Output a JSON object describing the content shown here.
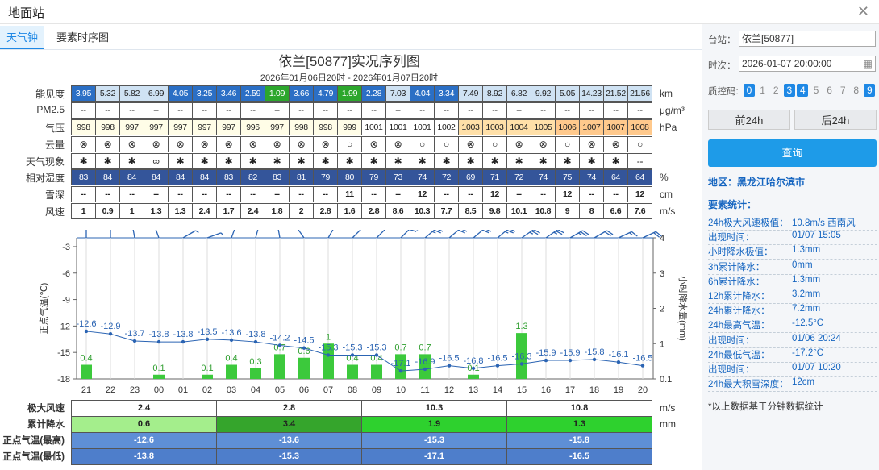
{
  "window": {
    "title": "地面站",
    "close_icon": "close-icon"
  },
  "tabs": [
    {
      "label": "天气钟"
    },
    {
      "label": "要素时序图"
    }
  ],
  "chart": {
    "title": "依兰[50877]实况序列图",
    "subtitle": "2026年01月06日20时 - 2026年01月07日20时"
  },
  "hours": [
    "21",
    "22",
    "23",
    "00",
    "01",
    "02",
    "03",
    "04",
    "05",
    "06",
    "07",
    "08",
    "09",
    "10",
    "11",
    "12",
    "13",
    "14",
    "15",
    "16",
    "17",
    "18",
    "19",
    "20"
  ],
  "rows": [
    {
      "label": "能见度",
      "unit": "km",
      "values": [
        "3.95",
        "5.32",
        "5.82",
        "6.99",
        "4.05",
        "3.25",
        "3.46",
        "2.59",
        "1.09",
        "3.66",
        "4.79",
        "1.99",
        "2.28",
        "7.03",
        "4.04",
        "3.34",
        "7.49",
        "8.92",
        "6.82",
        "9.92",
        "5.05",
        "14.23",
        "21.52",
        "21.56"
      ]
    },
    {
      "label": "PM2.5",
      "unit": "μg/m³",
      "values": [
        "--",
        "--",
        "--",
        "--",
        "--",
        "--",
        "--",
        "--",
        "--",
        "--",
        "--",
        "--",
        "--",
        "--",
        "--",
        "--",
        "--",
        "--",
        "--",
        "--",
        "--",
        "--",
        "--",
        "--"
      ]
    },
    {
      "label": "气压",
      "unit": "hPa",
      "values": [
        "998",
        "998",
        "997",
        "997",
        "997",
        "997",
        "997",
        "996",
        "997",
        "998",
        "998",
        "999",
        "1001",
        "1001",
        "1001",
        "1002",
        "1003",
        "1003",
        "1004",
        "1005",
        "1006",
        "1007",
        "1007",
        "1008"
      ]
    },
    {
      "label": "云量",
      "unit": "",
      "values": [
        "⊗",
        "⊗",
        "⊗",
        "⊗",
        "⊗",
        "⊗",
        "⊗",
        "⊗",
        "⊗",
        "⊗",
        "⊗",
        "○",
        "⊗",
        "⊗",
        "○",
        "○",
        "⊗",
        "○",
        "⊗",
        "⊗",
        "○",
        "⊗",
        "⊗",
        "○"
      ]
    },
    {
      "label": "天气现象",
      "unit": "",
      "values": [
        "✱",
        "✱",
        "✱",
        "∞",
        "✱",
        "✱",
        "✱",
        "✱",
        "✱",
        "✱",
        "✱",
        "✱",
        "✱",
        "✱",
        "✱",
        "✱",
        "✱",
        "✱",
        "✱",
        "✱",
        "✱",
        "✱",
        "✱",
        "--"
      ]
    },
    {
      "label": "相对湿度",
      "unit": "%",
      "values": [
        "83",
        "84",
        "84",
        "84",
        "84",
        "84",
        "83",
        "82",
        "83",
        "81",
        "79",
        "80",
        "79",
        "73",
        "74",
        "72",
        "69",
        "71",
        "72",
        "74",
        "75",
        "74",
        "64",
        "64"
      ]
    },
    {
      "label": "雪深",
      "unit": "cm",
      "values": [
        "--",
        "--",
        "--",
        "--",
        "--",
        "--",
        "--",
        "--",
        "--",
        "--",
        "--",
        "11",
        "--",
        "--",
        "12",
        "--",
        "--",
        "12",
        "--",
        "--",
        "12",
        "--",
        "--",
        "12"
      ]
    },
    {
      "label": "风速",
      "unit": "m/s",
      "values": [
        "1",
        "0.9",
        "1",
        "1.3",
        "1.3",
        "2.4",
        "1.7",
        "2.4",
        "1.8",
        "2",
        "2.8",
        "1.6",
        "2.8",
        "8.6",
        "10.3",
        "7.7",
        "8.5",
        "9.8",
        "10.1",
        "10.8",
        "9",
        "8",
        "6.6",
        "7.6"
      ]
    }
  ],
  "colors": {
    "visibility": [
      "#2b6fc5",
      "#cfe2f3",
      "#cfe2f3",
      "#cfe2f3",
      "#2b6fc5",
      "#2b6fc5",
      "#2b6fc5",
      "#2b6fc5",
      "#2ca62c",
      "#2b6fc5",
      "#2b6fc5",
      "#2ca62c",
      "#2b6fc5",
      "#cfe2f3",
      "#2b6fc5",
      "#2b6fc5",
      "#cfe2f3",
      "#cfe2f3",
      "#cfe2f3",
      "#cfe2f3",
      "#cfe2f3",
      "#cfe2f3",
      "#cfe2f3",
      "#cfe2f3"
    ],
    "visibility_text": [
      "#fff",
      "#222",
      "#222",
      "#222",
      "#fff",
      "#fff",
      "#fff",
      "#fff",
      "#fff",
      "#fff",
      "#fff",
      "#fff",
      "#fff",
      "#222",
      "#fff",
      "#fff",
      "#222",
      "#222",
      "#222",
      "#222",
      "#222",
      "#222",
      "#222",
      "#222"
    ],
    "pressure": [
      "#fffde7",
      "#fffde7",
      "#fffde7",
      "#fffde7",
      "#fffde7",
      "#fffde7",
      "#fffde7",
      "#fffde7",
      "#fffde7",
      "#fffde7",
      "#fffde7",
      "#fffde7",
      "#ffffff",
      "#ffffff",
      "#ffffff",
      "#ffffff",
      "#ffe0a8",
      "#ffe0a8",
      "#ffe0a8",
      "#ffe0a8",
      "#ffc98c",
      "#ffc98c",
      "#ffc98c",
      "#ffc98c"
    ],
    "humidity": "#34559a",
    "line": "#2b64b3",
    "bars": "#3cc93c"
  },
  "chart_data": {
    "type": "line",
    "x": [
      "21",
      "22",
      "23",
      "00",
      "01",
      "02",
      "03",
      "04",
      "05",
      "06",
      "07",
      "08",
      "09",
      "10",
      "11",
      "12",
      "13",
      "14",
      "15",
      "16",
      "17",
      "18",
      "19",
      "20"
    ],
    "series": [
      {
        "name": "正点气温",
        "values": [
          -12.6,
          -12.9,
          -13.7,
          -13.8,
          -13.8,
          -13.5,
          -13.6,
          -13.8,
          -14.2,
          -14.5,
          -15.3,
          -15.3,
          -15.3,
          -17.1,
          -16.9,
          -16.5,
          -16.8,
          -16.5,
          -16.3,
          -15.9,
          -15.9,
          -15.8,
          -16.1,
          -16.5
        ]
      },
      {
        "name": "小时降水量",
        "values": [
          0.4,
          0,
          0,
          0.1,
          0,
          0.1,
          0.4,
          0.3,
          0.7,
          0.6,
          1,
          0.4,
          0.4,
          0.7,
          0.7,
          0,
          0.1,
          0,
          1.3,
          0,
          0,
          0,
          0,
          0
        ]
      }
    ],
    "precip_labels": [
      "0.4",
      "",
      "",
      "0.1",
      "",
      "0.1",
      "0.4",
      "0.3",
      "0.7",
      "0.6",
      "1",
      "0.4",
      "0.4",
      "0.7",
      "0.7",
      "",
      "0.1",
      "",
      "1.3",
      "",
      "",
      "",
      "",
      ""
    ],
    "temp_labels": [
      "-12.6",
      "-12.9",
      "-13.7",
      "-13.8",
      "-13.8",
      "-13.5",
      "-13.6",
      "-13.8",
      "-14.2",
      "-14.5",
      "-15.3",
      "-15.3",
      "-15.3",
      "-17.1",
      "-16.9",
      "-16.5",
      "-16.8",
      "-16.5",
      "-16.3",
      "-15.9",
      "-15.9",
      "-15.8",
      "-16.1",
      "-16.5"
    ],
    "ylabel_left": "正点气温(℃)",
    "ylabel_right": "小时降水量(mm)",
    "yticks_left": [
      "-3",
      "-6",
      "-9",
      "-12",
      "-15",
      "-18"
    ],
    "yticks_right": [
      "4",
      "3",
      "2",
      "1",
      "0.1"
    ],
    "ylim_left": [
      -18,
      -2
    ],
    "ylim_right": [
      0,
      4
    ],
    "wind_dir_deg": [
      180,
      180,
      170,
      160,
      240,
      250,
      200,
      195,
      170,
      145,
      210,
      225,
      225,
      225,
      230,
      230,
      230,
      230,
      235,
      235,
      240,
      240,
      245,
      245
    ],
    "grid": false
  },
  "summary": {
    "headers": [
      "极大风速",
      "累计降水",
      "正点气温(最高)",
      "正点气温(最低)"
    ],
    "units": [
      "m/s",
      "mm"
    ],
    "wind": [
      "2.4",
      "2.8",
      "10.3",
      "10.8"
    ],
    "precip": [
      "0.6",
      "3.4",
      "1.9",
      "1.3"
    ],
    "precip_colors": [
      "#a4ee8c",
      "#35a52c",
      "#2ed12e",
      "#2ed12e"
    ],
    "tmax": [
      "-12.6",
      "-13.6",
      "-15.3",
      "-15.8"
    ],
    "tmin": [
      "-13.8",
      "-15.3",
      "-17.1",
      "-16.5"
    ]
  },
  "sidebar": {
    "station_label": "台站：",
    "station": "依兰[50877]",
    "time_label": "时次：",
    "time": "2026-01-07 20:00:00",
    "calendar_icon": "calendar-icon",
    "qc_label": "质控码:",
    "qc_codes": [
      "0",
      "1",
      "2",
      "3",
      "4",
      "5",
      "6",
      "7",
      "8",
      "9"
    ],
    "qc_active": [
      true,
      false,
      false,
      true,
      true,
      false,
      false,
      false,
      false,
      true
    ],
    "prev_label": "前24h",
    "next_label": "后24h",
    "query_label": "查询",
    "region": "地区：黑龙江哈尔滨市",
    "stats_title": "要素统计：",
    "stats": [
      {
        "k": "24h极大风速极值：",
        "v": "10.8m/s 西南风"
      },
      {
        "k": "出现时间：",
        "v": "01/07 15:05"
      },
      {
        "k": "小时降水极值：",
        "v": "1.3mm"
      },
      {
        "k": "3h累计降水：",
        "v": "0mm"
      },
      {
        "k": "6h累计降水：",
        "v": "1.3mm"
      },
      {
        "k": "12h累计降水：",
        "v": "3.2mm"
      },
      {
        "k": "24h累计降水：",
        "v": "7.2mm"
      },
      {
        "k": "24h最高气温：",
        "v": "-12.5°C"
      },
      {
        "k": "出现时间：",
        "v": "01/06 20:24"
      },
      {
        "k": "24h最低气温：",
        "v": "-17.2°C"
      },
      {
        "k": "出现时间：",
        "v": "01/07 10:20"
      },
      {
        "k": "24h最大积雪深度：",
        "v": "12cm"
      }
    ],
    "note": "*以上数据基于分钟数据统计"
  }
}
